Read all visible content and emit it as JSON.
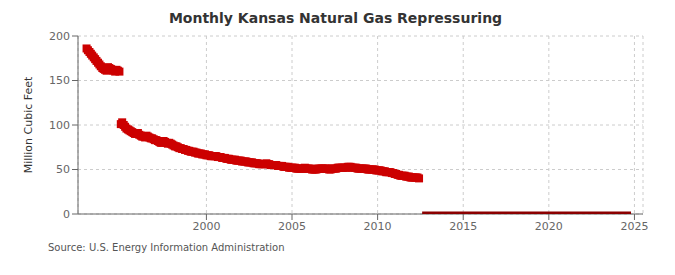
{
  "chart_data": {
    "type": "scatter",
    "title": "Monthly Kansas Natural Gas Repressuring",
    "y_label": "Million Cubic Feet",
    "annotations": [
      "Source: U.S. Energy Information Administration"
    ],
    "xlim": [
      1992.5,
      2025.5
    ],
    "xticks": [
      2000,
      2005,
      2010,
      2015,
      2020,
      2025
    ],
    "ylim": [
      0,
      200
    ],
    "yticks": [
      0,
      50,
      100,
      150,
      200
    ],
    "grid": true,
    "series": [
      {
        "type": "scatter",
        "color": "#CC0000",
        "marker": "square",
        "x": [
          1993.0,
          1993.08,
          1993.17,
          1993.25,
          1993.33,
          1993.42,
          1993.5,
          1993.58,
          1993.67,
          1993.75,
          1993.83,
          1993.92,
          1994.0,
          1994.08,
          1994.17,
          1994.25,
          1994.33,
          1994.42,
          1994.5,
          1994.58,
          1994.67,
          1994.75,
          1994.83,
          1994.92,
          1995.0,
          1995.08,
          1995.17,
          1995.25,
          1995.33,
          1995.42,
          1995.5,
          1995.58,
          1995.67,
          1995.75,
          1995.83,
          1995.92,
          1996.0,
          1996.08,
          1996.17,
          1996.25,
          1996.33,
          1996.42,
          1996.5,
          1996.58,
          1996.67,
          1996.75,
          1996.83,
          1996.92,
          1997.0,
          1997.08,
          1997.17,
          1997.25,
          1997.33,
          1997.42,
          1997.5,
          1997.58,
          1997.67,
          1997.75,
          1997.83,
          1997.92,
          1998.0,
          1998.08,
          1998.17,
          1998.25,
          1998.33,
          1998.42,
          1998.5,
          1998.58,
          1998.67,
          1998.75,
          1998.83,
          1998.92,
          1999.0,
          1999.08,
          1999.17,
          1999.25,
          1999.33,
          1999.42,
          1999.5,
          1999.58,
          1999.67,
          1999.75,
          1999.83,
          1999.92,
          2000.0,
          2000.08,
          2000.17,
          2000.25,
          2000.33,
          2000.42,
          2000.5,
          2000.58,
          2000.67,
          2000.75,
          2000.83,
          2000.92,
          2001.0,
          2001.08,
          2001.17,
          2001.25,
          2001.33,
          2001.42,
          2001.5,
          2001.58,
          2001.67,
          2001.75,
          2001.83,
          2001.92,
          2002.0,
          2002.08,
          2002.17,
          2002.25,
          2002.33,
          2002.42,
          2002.5,
          2002.58,
          2002.67,
          2002.75,
          2002.83,
          2002.92,
          2003.0,
          2003.08,
          2003.17,
          2003.25,
          2003.33,
          2003.42,
          2003.5,
          2003.58,
          2003.67,
          2003.75,
          2003.83,
          2003.92,
          2004.0,
          2004.08,
          2004.17,
          2004.25,
          2004.33,
          2004.42,
          2004.5,
          2004.58,
          2004.67,
          2004.75,
          2004.83,
          2004.92,
          2005.0,
          2005.08,
          2005.17,
          2005.25,
          2005.33,
          2005.42,
          2005.5,
          2005.58,
          2005.67,
          2005.75,
          2005.83,
          2005.92,
          2006.0,
          2006.08,
          2006.17,
          2006.25,
          2006.33,
          2006.42,
          2006.5,
          2006.58,
          2006.67,
          2006.75,
          2006.83,
          2006.92,
          2007.0,
          2007.08,
          2007.17,
          2007.25,
          2007.33,
          2007.42,
          2007.5,
          2007.58,
          2007.67,
          2007.75,
          2007.83,
          2007.92,
          2008.0,
          2008.08,
          2008.17,
          2008.25,
          2008.33,
          2008.42,
          2008.5,
          2008.58,
          2008.67,
          2008.75,
          2008.83,
          2008.92,
          2009.0,
          2009.08,
          2009.17,
          2009.25,
          2009.33,
          2009.42,
          2009.5,
          2009.58,
          2009.67,
          2009.75,
          2009.83,
          2009.92,
          2010.0,
          2010.08,
          2010.17,
          2010.25,
          2010.33,
          2010.42,
          2010.5,
          2010.58,
          2010.67,
          2010.75,
          2010.83,
          2010.92,
          2011.0,
          2011.08,
          2011.17,
          2011.25,
          2011.33,
          2011.42,
          2011.5,
          2011.58,
          2011.67,
          2011.75,
          2011.83,
          2011.92,
          2012.0,
          2012.08,
          2012.17,
          2012.25,
          2012.33,
          2012.42
        ],
        "values": [
          186,
          184,
          182,
          180,
          178,
          176,
          174,
          172,
          170,
          168,
          166,
          164,
          163,
          162,
          161,
          165,
          164,
          163,
          162,
          161,
          160,
          162,
          161,
          160,
          101,
          103,
          100,
          98,
          96,
          95,
          94,
          93,
          92,
          91,
          90,
          90,
          91,
          89,
          88,
          87,
          87,
          86,
          88,
          87,
          86,
          85,
          85,
          84,
          83,
          83,
          82,
          81,
          80,
          80,
          82,
          81,
          80,
          79,
          80,
          79,
          78,
          77,
          76,
          76,
          75,
          74,
          74,
          73,
          73,
          72,
          72,
          71,
          71,
          70,
          70,
          70,
          69,
          69,
          68,
          68,
          68,
          67,
          67,
          67,
          66,
          66,
          66,
          65,
          65,
          65,
          65,
          65,
          64,
          64,
          64,
          63,
          63,
          63,
          62,
          62,
          62,
          61,
          61,
          61,
          61,
          60,
          60,
          60,
          60,
          59,
          59,
          59,
          59,
          58,
          58,
          58,
          58,
          57,
          57,
          57,
          57,
          56,
          56,
          56,
          56,
          56,
          57,
          56,
          56,
          55,
          55,
          55,
          55,
          55,
          54,
          54,
          54,
          54,
          53,
          53,
          53,
          53,
          52,
          52,
          52,
          52,
          52,
          51,
          51,
          51,
          51,
          51,
          51,
          52,
          51,
          51,
          51,
          51,
          50,
          50,
          50,
          50,
          51,
          51,
          51,
          51,
          51,
          51,
          51,
          51,
          50,
          50,
          51,
          51,
          51,
          51,
          52,
          52,
          52,
          52,
          52,
          52,
          52,
          53,
          53,
          53,
          52,
          52,
          52,
          52,
          51,
          51,
          51,
          51,
          51,
          51,
          51,
          50,
          50,
          50,
          50,
          50,
          50,
          49,
          49,
          49,
          49,
          48,
          48,
          48,
          47,
          47,
          47,
          47,
          46,
          46,
          45,
          45,
          44,
          44,
          43,
          43,
          43,
          43,
          42,
          42,
          42,
          41,
          41,
          41,
          41,
          41,
          41,
          40
        ]
      },
      {
        "type": "line",
        "color": "#8B0000",
        "x": [
          2012.6,
          2024.8
        ],
        "values": [
          0,
          0
        ]
      }
    ]
  }
}
